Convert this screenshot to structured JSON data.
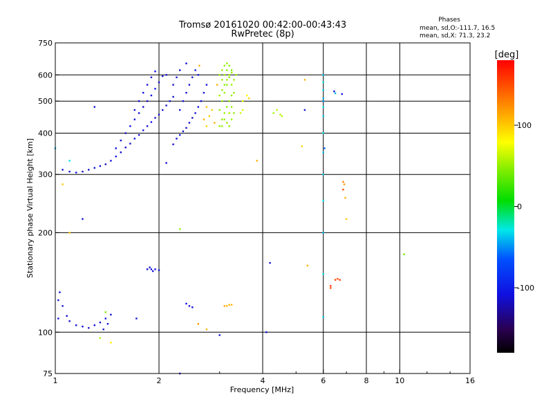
{
  "chart_data": {
    "type": "scatter",
    "title": "Tromsø 20161020 00:42:00-00:43:43",
    "subtitle": "RwPretec (8p)",
    "stats": {
      "header": "Phases",
      "line1": "mean, sd,O:-111.7, 16.5",
      "line2": "mean, sd,X:  71.3, 23.2"
    },
    "xlabel": "Frequency [MHz]",
    "ylabel": "Stationary phase Virtual Height [km]",
    "x_scale": "log",
    "y_scale": "log",
    "xlim": [
      1,
      16
    ],
    "ylim": [
      75,
      750
    ],
    "x_ticks": [
      1,
      2,
      4,
      6,
      8,
      10,
      16
    ],
    "x_tick_labels": [
      "1",
      "2",
      "4",
      "6",
      "8",
      "10",
      "16"
    ],
    "x_grid": [
      2,
      4,
      6,
      8,
      10
    ],
    "y_ticks": [
      75,
      100,
      200,
      300,
      400,
      500,
      600,
      750
    ],
    "y_tick_labels": [
      "75",
      "100",
      "200",
      "300",
      "400",
      "500",
      "600",
      "750"
    ],
    "y_grid": [
      100,
      200,
      300,
      400,
      500,
      600
    ],
    "grid": true,
    "colorbar": {
      "label": "[deg]",
      "range": [
        -180,
        180
      ],
      "ticks": [
        100,
        0,
        -100
      ],
      "tick_labels": [
        "100",
        "0",
        "-100"
      ]
    },
    "series": [
      {
        "points": [
          [
            1.05,
            310,
            -110
          ],
          [
            1.1,
            306,
            -112
          ],
          [
            1.15,
            304,
            -108
          ],
          [
            1.2,
            306,
            -115
          ],
          [
            1.25,
            310,
            -110
          ],
          [
            1.3,
            314,
            -105
          ],
          [
            1.35,
            318,
            -112
          ],
          [
            1.4,
            322,
            -118
          ],
          [
            1.45,
            330,
            -110
          ],
          [
            1.5,
            340,
            -108
          ],
          [
            1.55,
            350,
            -114
          ],
          [
            1.6,
            362,
            -112
          ],
          [
            1.65,
            372,
            -110
          ],
          [
            1.7,
            385,
            -105
          ],
          [
            1.75,
            395,
            -115
          ],
          [
            1.8,
            408,
            -112
          ],
          [
            1.85,
            420,
            -110
          ],
          [
            1.9,
            432,
            -108
          ],
          [
            1.95,
            445,
            -116
          ],
          [
            2.0,
            455,
            -112
          ],
          [
            2.05,
            470,
            -110
          ],
          [
            2.1,
            485,
            -114
          ],
          [
            2.15,
            500,
            -108
          ],
          [
            2.2,
            515,
            -112
          ],
          [
            1.5,
            360,
            -110
          ],
          [
            1.55,
            380,
            -112
          ],
          [
            1.6,
            400,
            -115
          ],
          [
            1.65,
            420,
            -108
          ],
          [
            1.7,
            440,
            -112
          ],
          [
            1.75,
            460,
            -110
          ],
          [
            1.8,
            480,
            -116
          ],
          [
            1.85,
            500,
            -112
          ],
          [
            1.9,
            520,
            -110
          ],
          [
            1.95,
            545,
            -108
          ],
          [
            2.0,
            570,
            -114
          ],
          [
            2.05,
            595,
            -112
          ],
          [
            1.7,
            470,
            -110
          ],
          [
            1.75,
            500,
            -112
          ],
          [
            1.8,
            530,
            -108
          ],
          [
            1.85,
            560,
            -115
          ],
          [
            1.9,
            590,
            -112
          ],
          [
            1.95,
            615,
            -110
          ],
          [
            2.2,
            370,
            -112
          ],
          [
            2.25,
            385,
            -110
          ],
          [
            2.3,
            395,
            -108
          ],
          [
            2.35,
            405,
            -114
          ],
          [
            2.4,
            415,
            -112
          ],
          [
            2.45,
            430,
            -110
          ],
          [
            2.5,
            445,
            -116
          ],
          [
            2.55,
            460,
            -112
          ],
          [
            2.6,
            480,
            -110
          ],
          [
            2.65,
            500,
            -108
          ],
          [
            2.7,
            530,
            -112
          ],
          [
            2.75,
            560,
            -110
          ],
          [
            2.3,
            470,
            -112
          ],
          [
            2.35,
            500,
            -110
          ],
          [
            2.4,
            530,
            -114
          ],
          [
            2.45,
            560,
            -112
          ],
          [
            2.5,
            590,
            -108
          ],
          [
            2.55,
            620,
            -110
          ],
          [
            2.2,
            560,
            -112
          ],
          [
            2.25,
            590,
            -110
          ],
          [
            2.3,
            620,
            -114
          ],
          [
            2.1,
            600,
            -112
          ],
          [
            2.4,
            650,
            -110
          ],
          [
            2.6,
            600,
            -108
          ],
          [
            1.3,
            480,
            -112
          ],
          [
            1.2,
            220,
            -110
          ],
          [
            2.1,
            325,
            -112
          ],
          [
            1.85,
            155,
            -115
          ],
          [
            1.9,
            155,
            -112
          ],
          [
            1.95,
            155,
            -110
          ],
          [
            2.0,
            154,
            -108
          ],
          [
            1.88,
            157,
            -112
          ],
          [
            1.92,
            153,
            -110
          ],
          [
            2.45,
            120,
            -112
          ],
          [
            2.5,
            119,
            -110
          ],
          [
            2.4,
            122,
            -108
          ],
          [
            1.02,
            125,
            -112
          ],
          [
            1.05,
            120,
            -110
          ],
          [
            1.08,
            112,
            -115
          ],
          [
            1.1,
            108,
            -112
          ],
          [
            1.15,
            105,
            -110
          ],
          [
            1.2,
            104,
            -108
          ],
          [
            1.25,
            103,
            -112
          ],
          [
            1.3,
            105,
            -110
          ],
          [
            1.35,
            107,
            -115
          ],
          [
            1.4,
            110,
            -112
          ],
          [
            1.45,
            113,
            -110
          ],
          [
            1.42,
            106,
            -108
          ],
          [
            1.38,
            102,
            -112
          ],
          [
            1.02,
            110,
            -110
          ],
          [
            1.03,
            132,
            -112
          ],
          [
            1.72,
            110,
            -110
          ],
          [
            2.3,
            75,
            -112
          ],
          [
            3.0,
            98,
            -110
          ],
          [
            4.2,
            162,
            -112
          ],
          [
            4.1,
            100,
            -110
          ],
          [
            5.3,
            470,
            -112
          ],
          [
            6.8,
            525,
            -112
          ],
          [
            6.45,
            535,
            -110
          ]
        ]
      },
      {
        "points": [
          [
            3.0,
            420,
            50
          ],
          [
            3.05,
            440,
            48
          ],
          [
            3.1,
            460,
            52
          ],
          [
            3.15,
            480,
            50
          ],
          [
            3.2,
            500,
            46
          ],
          [
            3.25,
            520,
            50
          ],
          [
            3.0,
            520,
            55
          ],
          [
            3.05,
            540,
            50
          ],
          [
            3.1,
            560,
            48
          ],
          [
            3.15,
            580,
            52
          ],
          [
            3.2,
            600,
            50
          ],
          [
            3.25,
            620,
            46
          ],
          [
            3.0,
            600,
            50
          ],
          [
            3.05,
            620,
            52
          ],
          [
            3.1,
            640,
            48
          ],
          [
            3.15,
            650,
            50
          ],
          [
            3.2,
            460,
            55
          ],
          [
            3.25,
            480,
            50
          ],
          [
            3.05,
            420,
            48
          ],
          [
            3.1,
            440,
            52
          ],
          [
            3.15,
            430,
            50
          ],
          [
            3.2,
            420,
            48
          ],
          [
            3.25,
            440,
            52
          ],
          [
            3.3,
            460,
            50
          ],
          [
            3.3,
            580,
            50
          ],
          [
            3.35,
            600,
            52
          ],
          [
            3.0,
            470,
            48
          ],
          [
            3.05,
            500,
            50
          ],
          [
            3.1,
            530,
            52
          ],
          [
            3.15,
            560,
            48
          ],
          [
            3.2,
            590,
            50
          ],
          [
            3.25,
            560,
            52
          ],
          [
            3.3,
            530,
            48
          ],
          [
            3.05,
            580,
            50
          ],
          [
            3.1,
            600,
            52
          ],
          [
            3.15,
            620,
            48
          ],
          [
            3.2,
            640,
            50
          ],
          [
            3.25,
            610,
            52
          ],
          [
            4.3,
            460,
            55
          ],
          [
            4.4,
            470,
            60
          ],
          [
            4.5,
            455,
            58
          ],
          [
            4.55,
            450,
            62
          ],
          [
            3.45,
            460,
            65
          ],
          [
            3.5,
            470,
            70
          ],
          [
            3.5,
            500,
            70
          ],
          [
            2.3,
            205,
            50
          ],
          [
            1.4,
            115,
            45
          ],
          [
            1.35,
            96,
            60
          ],
          [
            1.45,
            93,
            85
          ],
          [
            10.3,
            172,
            40
          ]
        ]
      },
      {
        "points": [
          [
            2.75,
            420,
            95
          ],
          [
            2.8,
            450,
            100
          ],
          [
            2.7,
            440,
            110
          ],
          [
            2.75,
            480,
            105
          ],
          [
            2.9,
            430,
            110
          ],
          [
            2.85,
            470,
            100
          ],
          [
            3.15,
            120,
            105
          ],
          [
            3.2,
            121,
            110
          ],
          [
            3.1,
            120,
            115
          ],
          [
            3.25,
            121,
            108
          ],
          [
            2.75,
            102,
            110
          ],
          [
            2.6,
            106,
            120
          ],
          [
            1.1,
            200,
            100
          ],
          [
            1.05,
            280,
            100
          ],
          [
            5.2,
            365,
            95
          ],
          [
            5.3,
            580,
            110
          ],
          [
            5.4,
            159,
            110
          ],
          [
            6.85,
            285,
            130
          ],
          [
            6.9,
            280,
            120
          ],
          [
            6.95,
            255,
            110
          ],
          [
            7.0,
            220,
            100
          ],
          [
            3.6,
            520,
            80
          ],
          [
            3.65,
            510,
            95
          ],
          [
            3.85,
            330,
            110
          ],
          [
            2.62,
            640,
            110
          ],
          [
            2.95,
            560,
            110
          ]
        ]
      },
      {
        "points": [
          [
            6.5,
            144,
            155
          ],
          [
            6.6,
            145,
            150
          ],
          [
            6.7,
            144,
            158
          ],
          [
            6.3,
            138,
            160
          ],
          [
            6.3,
            136,
            150
          ],
          [
            6.85,
            270,
            150
          ]
        ]
      },
      {
        "points": [
          [
            6.0,
            150,
            -30
          ],
          [
            6.0,
            200,
            -40
          ],
          [
            6.0,
            250,
            -30
          ],
          [
            6.0,
            300,
            -35
          ],
          [
            6.0,
            350,
            -40
          ],
          [
            6.0,
            400,
            -30
          ],
          [
            6.0,
            450,
            -35
          ],
          [
            6.0,
            480,
            -30
          ],
          [
            6.0,
            510,
            -40
          ],
          [
            6.0,
            540,
            -35
          ],
          [
            6.0,
            570,
            -30
          ],
          [
            6.0,
            600,
            -40
          ],
          [
            6.0,
            111,
            -35
          ],
          [
            6.0,
            500,
            -50
          ],
          [
            1.0,
            360,
            -40
          ],
          [
            1.1,
            330,
            -30
          ],
          [
            6.05,
            360,
            -60
          ],
          [
            6.5,
            528,
            -40
          ]
        ]
      }
    ]
  }
}
